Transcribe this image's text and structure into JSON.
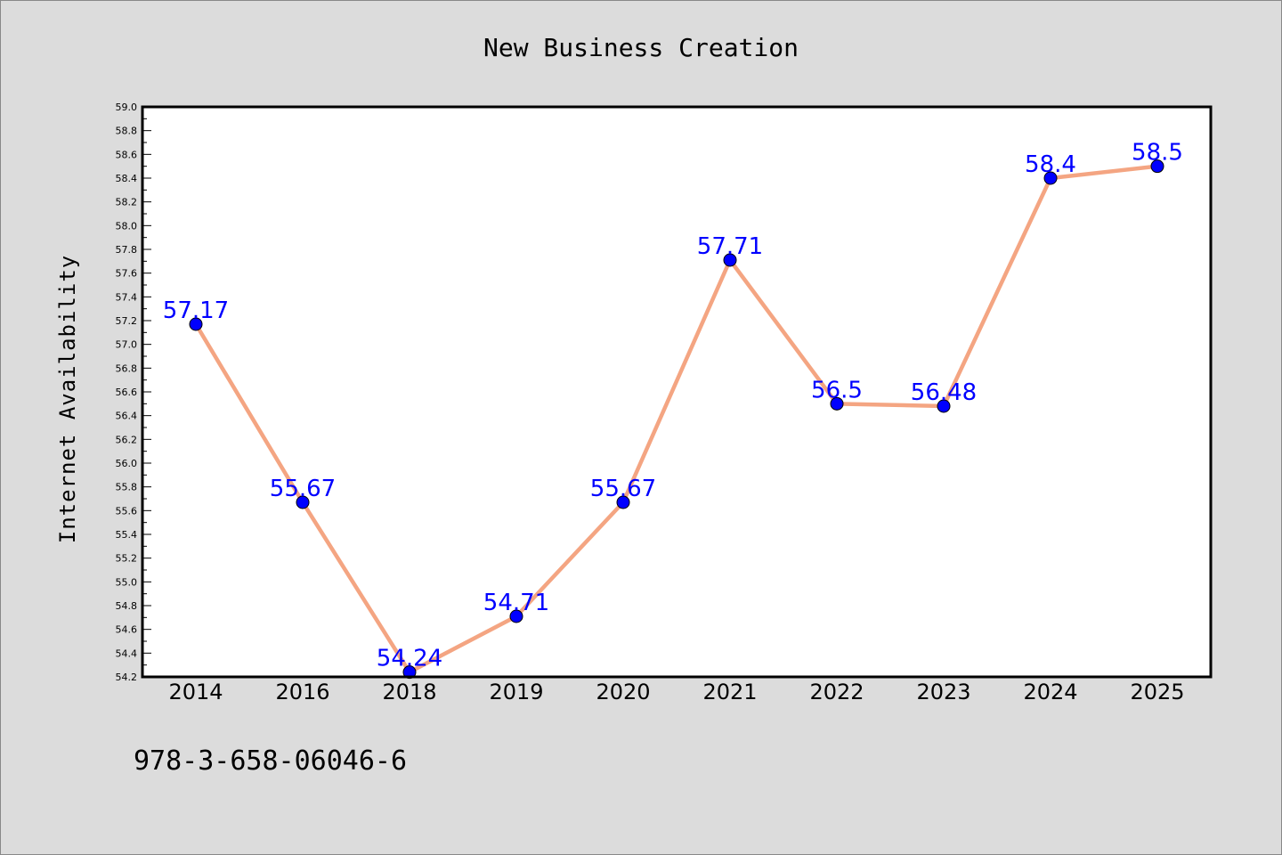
{
  "chart_data": {
    "type": "line",
    "title": "New Business Creation",
    "xlabel": "",
    "ylabel": "Internet Availability",
    "categories": [
      "2014",
      "2016",
      "2018",
      "2019",
      "2020",
      "2021",
      "2022",
      "2023",
      "2024",
      "2025"
    ],
    "values": [
      57.17,
      55.67,
      54.24,
      54.71,
      55.67,
      57.71,
      56.5,
      56.48,
      58.4,
      58.5
    ],
    "data_labels": [
      "57.17",
      "55.67",
      "54.24",
      "54.71",
      "55.67",
      "57.71",
      "56.5",
      "56.48",
      "58.4",
      "58.5"
    ],
    "ylim": [
      54.2,
      59.0
    ],
    "yticks": [
      "54.2",
      "54.4",
      "54.6",
      "54.8",
      "55.0",
      "55.2",
      "55.4",
      "55.6",
      "55.8",
      "56.0",
      "56.2",
      "56.4",
      "56.6",
      "56.8",
      "57.0",
      "57.2",
      "57.4",
      "57.6",
      "57.8",
      "58.0",
      "58.2",
      "58.4",
      "58.6",
      "58.8",
      "59.0"
    ],
    "grid": false,
    "line_color": "#f4a582",
    "marker_color": "#0000ff",
    "label_color": "#0000ff"
  },
  "footer": {
    "text": "978-3-658-06046-6"
  }
}
